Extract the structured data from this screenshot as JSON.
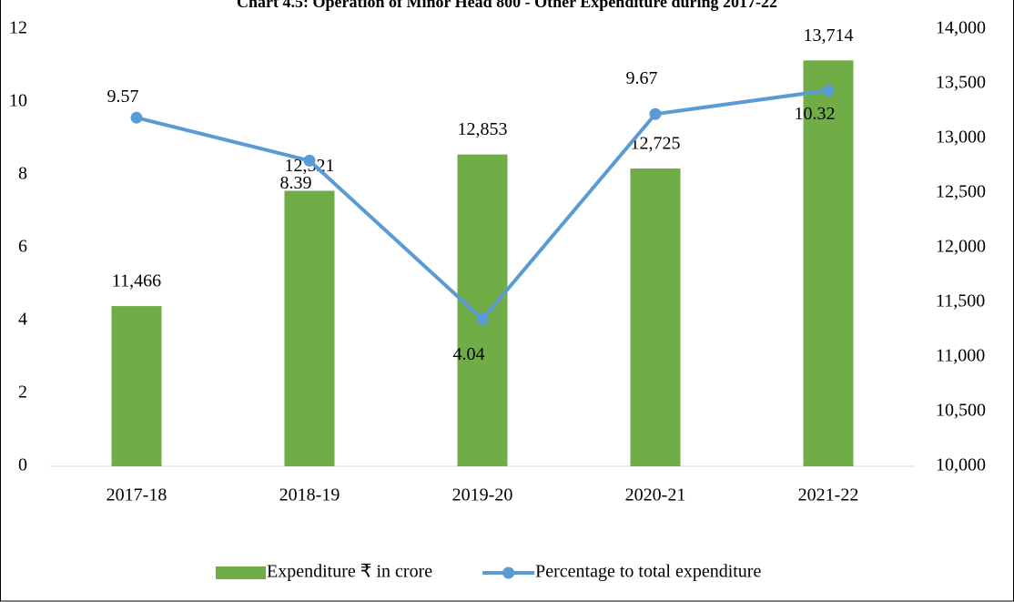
{
  "chart_data": {
    "type": "combo",
    "title": "Chart 4.5: Operation of Minor Head 800 - Other Expenditure during 2017-22",
    "categories": [
      "2017-18",
      "2018-19",
      "2019-20",
      "2020-21",
      "2021-22"
    ],
    "series": [
      {
        "name": "Expenditure ₹ in crore",
        "type": "bar",
        "axis": "y2",
        "color": "#70ad47",
        "values": [
          11466,
          12521,
          12853,
          12725,
          13714
        ],
        "value_labels": [
          "11,466",
          "12,521",
          "12,853",
          "12,725",
          "13,714"
        ]
      },
      {
        "name": "Percentage to total expenditure",
        "type": "line",
        "axis": "y",
        "color": "#5b9bd5",
        "values": [
          9.57,
          8.39,
          4.04,
          9.67,
          10.32
        ]
      }
    ],
    "ylim": [
      0,
      12
    ],
    "yticks": [
      0,
      2,
      4,
      6,
      8,
      10,
      12
    ],
    "y2lim": [
      10000,
      14000
    ],
    "y2ticks": [
      {
        "value": 10000,
        "label": "10,000"
      },
      {
        "value": 10500,
        "label": "10,500"
      },
      {
        "value": 11000,
        "label": "11,000"
      },
      {
        "value": 11500,
        "label": "11,500"
      },
      {
        "value": 12000,
        "label": "12,000"
      },
      {
        "value": 12500,
        "label": "12,500"
      },
      {
        "value": 13000,
        "label": "13,000"
      },
      {
        "value": 13500,
        "label": "13,500"
      },
      {
        "value": 14000,
        "label": "14,000"
      }
    ],
    "legend": "bottom"
  }
}
